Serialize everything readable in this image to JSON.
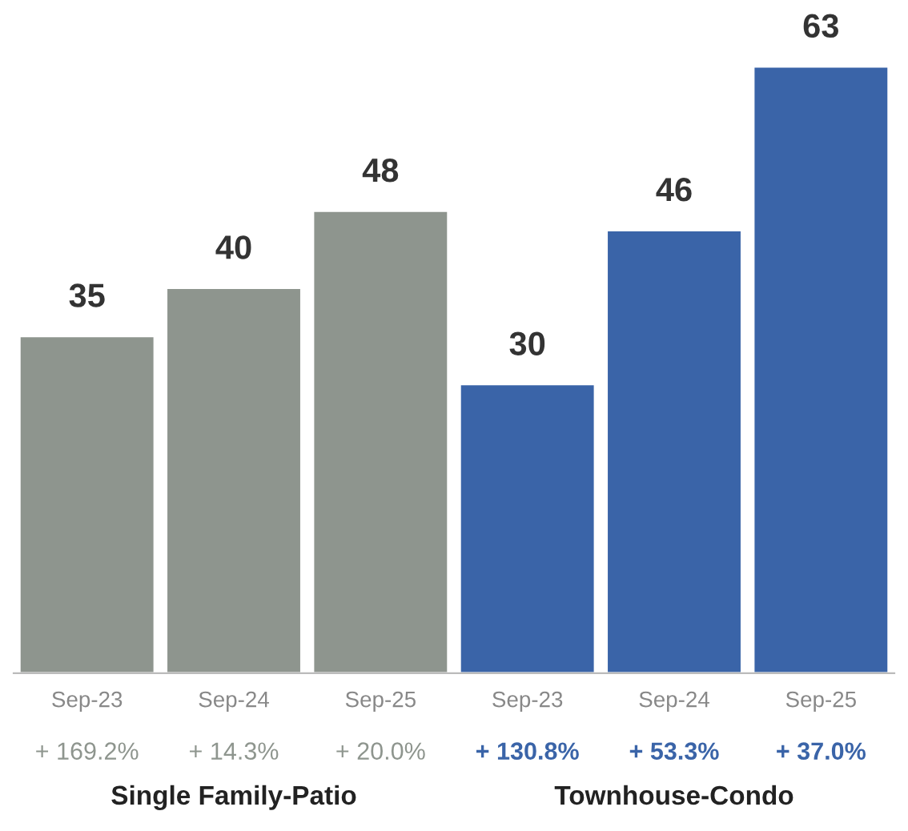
{
  "chart_data": {
    "type": "bar",
    "categories": [
      "Sep-23",
      "Sep-24",
      "Sep-25",
      "Sep-23",
      "Sep-24",
      "Sep-25"
    ],
    "values": [
      35,
      40,
      48,
      30,
      46,
      63
    ],
    "colors": [
      "#8e958e",
      "#8e958e",
      "#8e958e",
      "#3a64a8",
      "#3a64a8",
      "#3a64a8"
    ],
    "data_labels": true,
    "annotations": [
      "+ 169.2%",
      "+ 14.3%",
      "+ 20.0%",
      "+ 130.8%",
      "+ 53.3%",
      "+ 37.0%",
      "Single Family-Patio",
      "Townhouse-Condo"
    ],
    "grid": false,
    "legend": false
  }
}
